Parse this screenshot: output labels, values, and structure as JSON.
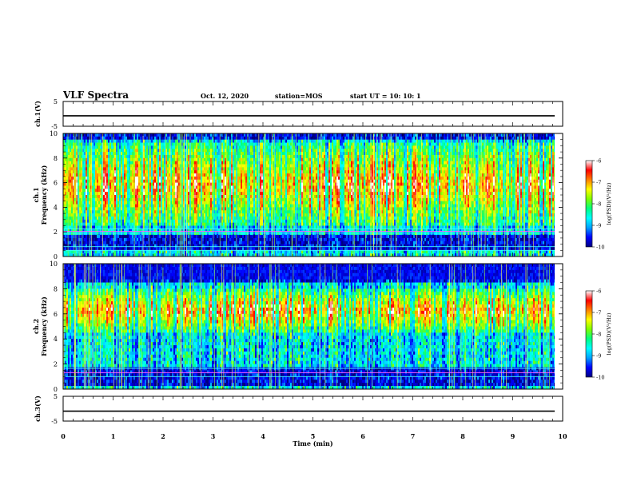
{
  "header": {
    "title": "VLF Spectra",
    "date": "Oct. 12, 2020",
    "station": "station=MOS",
    "start_ut": "start UT =   10: 10: 1"
  },
  "chart_data": [
    {
      "id": "ch1-voltage",
      "type": "line",
      "ylabel": "ch.1(V)",
      "ylim": [
        -5,
        5
      ],
      "yticks": [
        5,
        -5
      ],
      "x": [
        0,
        9.84
      ],
      "y": [
        -0.8,
        -0.8
      ]
    },
    {
      "id": "ch1-spectrogram",
      "type": "heatmap",
      "ylabel": "ch.1\nFrequency (kHz)",
      "ylim": [
        0,
        10
      ],
      "yticks": [
        0,
        2,
        4,
        6,
        8,
        10
      ],
      "xlim": [
        0,
        10
      ],
      "data_xmax": 9.84,
      "colorbar": {
        "label": "log(PSD)(V²/Hz)",
        "range": [
          -10,
          -6
        ],
        "ticks": [
          -6,
          -7,
          -8,
          -9,
          -10
        ]
      },
      "lines_khz": [
        2.25,
        2.05,
        1.9,
        0.8,
        0.5
      ],
      "dark_band_khz": [
        0.6,
        1.75
      ],
      "high_intensity_band_khz": [
        2.5,
        9.2
      ]
    },
    {
      "id": "ch2-spectrogram",
      "type": "heatmap",
      "ylabel": "ch.2\nFrequency (kHz)",
      "ylim": [
        0,
        10
      ],
      "yticks": [
        0,
        2,
        4,
        6,
        8,
        10
      ],
      "xlim": [
        0,
        10
      ],
      "data_xmax": 9.84,
      "colorbar": {
        "label": "log(PSD)(V²/Hz)",
        "range": [
          -10,
          -6
        ],
        "ticks": [
          -6,
          -7,
          -8,
          -9,
          -10
        ]
      },
      "lines_khz": [
        1.65,
        1.3,
        1.0
      ],
      "dark_band_khz": [
        0.3,
        1.7
      ],
      "high_intensity_band_khz": [
        4.5,
        8.0
      ]
    },
    {
      "id": "ch3-voltage",
      "type": "line",
      "ylabel": "ch.3(V)",
      "ylim": [
        -5,
        5
      ],
      "yticks": [
        5,
        -5
      ],
      "x": [
        0,
        9.84
      ],
      "y": [
        -1.0,
        -1.0
      ]
    }
  ],
  "xaxis": {
    "label": "Time (min)",
    "range": [
      0,
      10
    ],
    "ticks": [
      "0",
      "1",
      "2",
      "3",
      "4",
      "5",
      "6",
      "7",
      "8",
      "9",
      "10"
    ]
  },
  "colors": {
    "colormap": [
      "#000080",
      "#0000ff",
      "#00a0ff",
      "#00ffff",
      "#00ff80",
      "#80ff00",
      "#ffff00",
      "#ff8000",
      "#ff0000",
      "#ffffff"
    ],
    "trace": "#000000",
    "line_cyan": "#40ffff",
    "line_magenta": "#ff60ff"
  }
}
